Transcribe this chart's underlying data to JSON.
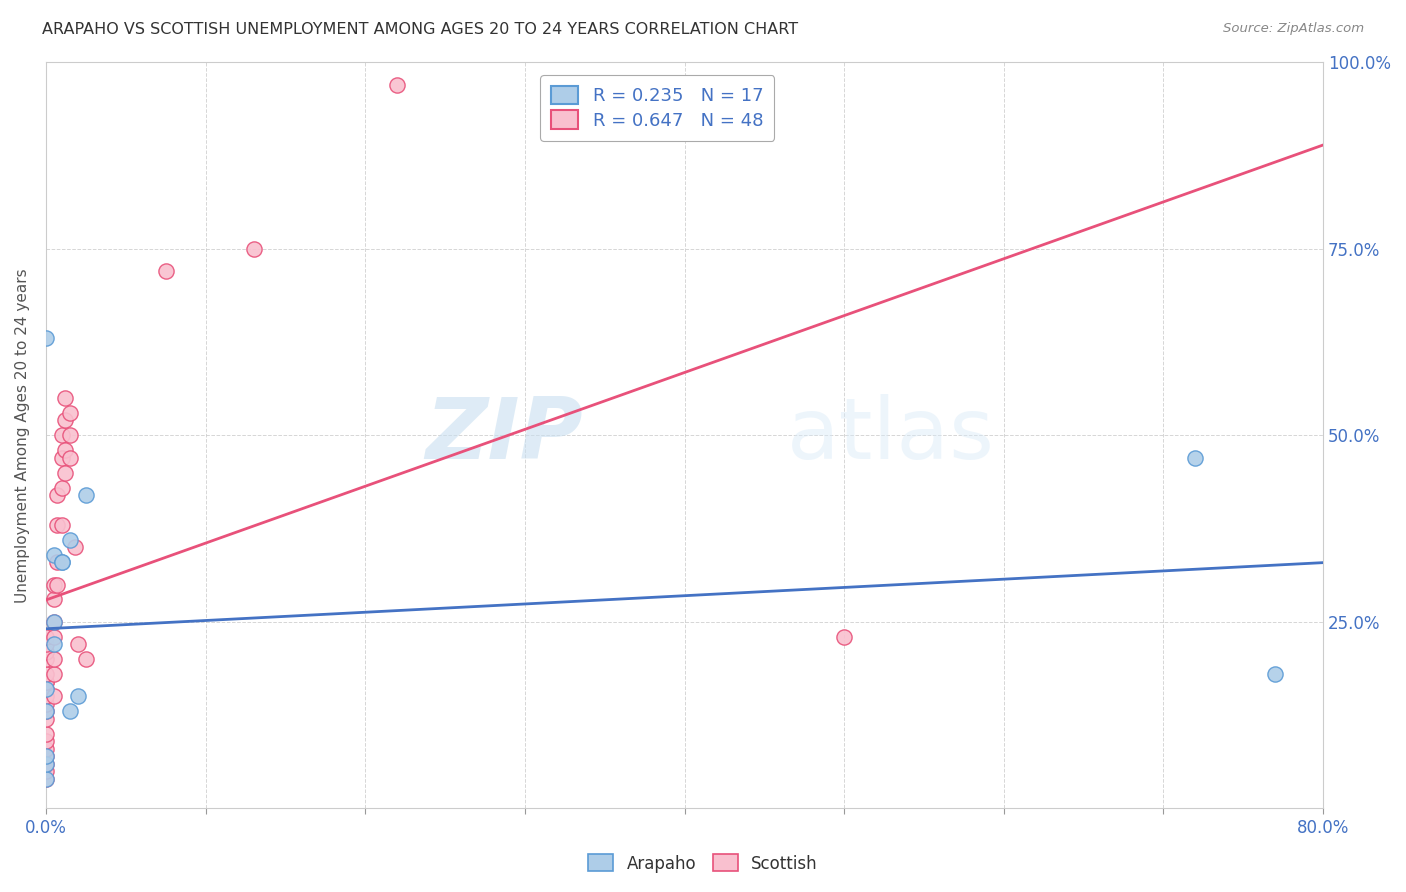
{
  "title": "ARAPAHO VS SCOTTISH UNEMPLOYMENT AMONG AGES 20 TO 24 YEARS CORRELATION CHART",
  "source": "Source: ZipAtlas.com",
  "ylabel": "Unemployment Among Ages 20 to 24 years",
  "xlim": [
    0.0,
    0.8
  ],
  "ylim": [
    0.0,
    1.0
  ],
  "xticks": [
    0.0,
    0.1,
    0.2,
    0.3,
    0.4,
    0.5,
    0.6,
    0.7,
    0.8
  ],
  "xticklabels": [
    "0.0%",
    "",
    "",
    "",
    "",
    "",
    "",
    "",
    "80.0%"
  ],
  "yticks_right": [
    0.0,
    0.25,
    0.5,
    0.75,
    1.0
  ],
  "yticklabels_right": [
    "",
    "25.0%",
    "50.0%",
    "75.0%",
    "100.0%"
  ],
  "arapaho_color": "#aecde8",
  "scottish_color": "#f9c0cf",
  "arapaho_edge_color": "#5b9bd5",
  "scottish_edge_color": "#e8517a",
  "arapaho_line_color": "#4472c4",
  "scottish_line_color": "#e8517a",
  "arapaho_R": 0.235,
  "arapaho_N": 17,
  "scottish_R": 0.647,
  "scottish_N": 48,
  "watermark_zip": "ZIP",
  "watermark_atlas": "atlas",
  "background_color": "#ffffff",
  "grid_color": "#cccccc",
  "arapaho_x": [
    0.0,
    0.0,
    0.0,
    0.0,
    0.0,
    0.0,
    0.005,
    0.005,
    0.005,
    0.01,
    0.01,
    0.015,
    0.015,
    0.02,
    0.025,
    0.72,
    0.77
  ],
  "arapaho_y": [
    0.04,
    0.06,
    0.07,
    0.13,
    0.16,
    0.63,
    0.22,
    0.34,
    0.25,
    0.33,
    0.33,
    0.13,
    0.36,
    0.15,
    0.42,
    0.47,
    0.18
  ],
  "scottish_x": [
    0.0,
    0.0,
    0.0,
    0.0,
    0.0,
    0.0,
    0.0,
    0.0,
    0.0,
    0.0,
    0.0,
    0.0,
    0.0,
    0.0,
    0.0,
    0.0,
    0.0,
    0.0,
    0.0,
    0.005,
    0.005,
    0.005,
    0.005,
    0.005,
    0.005,
    0.005,
    0.007,
    0.007,
    0.007,
    0.007,
    0.01,
    0.01,
    0.01,
    0.01,
    0.012,
    0.012,
    0.012,
    0.012,
    0.015,
    0.015,
    0.015,
    0.018,
    0.02,
    0.025,
    0.075,
    0.13,
    0.22,
    0.5
  ],
  "scottish_y": [
    0.04,
    0.05,
    0.06,
    0.07,
    0.08,
    0.09,
    0.1,
    0.12,
    0.13,
    0.14,
    0.15,
    0.16,
    0.17,
    0.17,
    0.18,
    0.2,
    0.21,
    0.22,
    0.23,
    0.15,
    0.18,
    0.2,
    0.23,
    0.25,
    0.28,
    0.3,
    0.3,
    0.33,
    0.38,
    0.42,
    0.38,
    0.43,
    0.47,
    0.5,
    0.45,
    0.48,
    0.52,
    0.55,
    0.47,
    0.5,
    0.53,
    0.35,
    0.22,
    0.2,
    0.72,
    0.75,
    0.97,
    0.23
  ]
}
